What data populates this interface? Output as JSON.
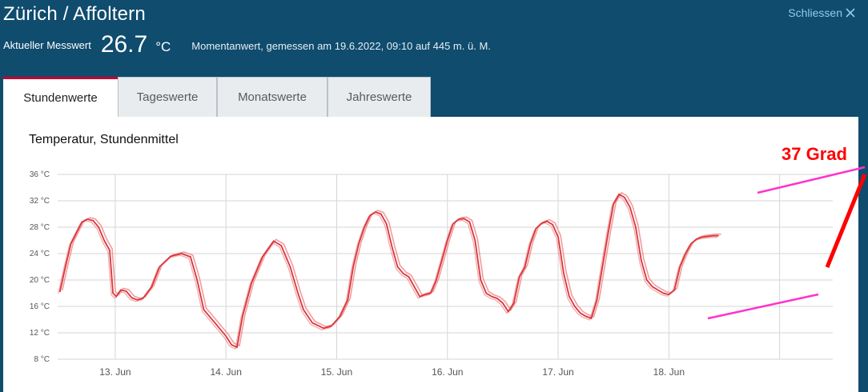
{
  "header": {
    "title": "Zürich / Affoltern",
    "close_label": "Schliessen"
  },
  "measurement": {
    "label": "Aktueller Messwert",
    "value": "26.7",
    "unit": "°C",
    "note": "Momentanwert, gemessen am 19.6.2022, 09:10 auf 445 m. ü. M."
  },
  "tabs": [
    {
      "label": "Stundenwerte",
      "active": true
    },
    {
      "label": "Tageswerte",
      "active": false
    },
    {
      "label": "Monatswerte",
      "active": false
    },
    {
      "label": "Jahreswerte",
      "active": false
    }
  ],
  "colors": {
    "header_bg": "#0f4c6e",
    "tab_accent": "#c3002f",
    "series_main": "#d9363e",
    "series_light": "#f08a8a",
    "annotation_red": "#ff0000",
    "annotation_magenta": "#ff33cc"
  },
  "chart_data": {
    "type": "line",
    "title": "Temperatur, Stundenmittel",
    "xlabel": "",
    "ylabel": "",
    "ylim": [
      8,
      36
    ],
    "xlim": [
      12.4,
      19.4
    ],
    "yticks": [
      "8 °C",
      "12 °C",
      "16 °C",
      "20 °C",
      "24 °C",
      "28 °C",
      "32 °C",
      "36 °C"
    ],
    "ytick_values": [
      8,
      12,
      16,
      20,
      24,
      28,
      32,
      36
    ],
    "xticks": [
      "13. Jun",
      "14. Jun",
      "15. Jun",
      "16. Jun",
      "17. Jun",
      "18. Jun"
    ],
    "xtick_values": [
      12.92,
      13.92,
      14.92,
      15.92,
      16.92,
      17.92
    ],
    "grid": true,
    "series": [
      {
        "x": [
          12.42,
          12.47,
          12.52,
          12.58,
          12.62,
          12.67,
          12.72,
          12.77,
          12.82,
          12.87,
          12.9,
          12.93,
          12.97,
          13.02,
          13.07,
          13.12,
          13.17,
          13.25,
          13.32,
          13.42,
          13.52,
          13.6,
          13.66,
          13.72,
          13.77,
          13.82,
          13.87,
          13.92,
          13.97,
          14.02,
          14.07,
          14.15,
          14.25,
          14.35,
          14.42,
          14.5,
          14.57,
          14.62,
          14.7,
          14.8,
          14.87,
          14.95,
          15.02,
          15.07,
          15.12,
          15.17,
          15.22,
          15.27,
          15.32,
          15.37,
          15.42,
          15.47,
          15.52,
          15.57,
          15.62,
          15.67,
          15.72,
          15.77,
          15.82,
          15.87,
          15.92,
          15.97,
          16.02,
          16.07,
          16.12,
          16.17,
          16.22,
          16.27,
          16.32,
          16.37,
          16.42,
          16.47,
          16.52,
          16.57,
          16.62,
          16.67,
          16.72,
          16.77,
          16.82,
          16.87,
          16.92,
          16.97,
          17.02,
          17.07,
          17.12,
          17.17,
          17.22,
          17.27,
          17.32,
          17.37,
          17.42,
          17.47,
          17.52,
          17.57,
          17.62,
          17.67,
          17.72,
          17.77,
          17.82,
          17.87,
          17.92,
          17.97,
          18.02,
          18.07,
          18.12,
          18.17,
          18.22,
          18.27,
          18.32,
          18.37
        ],
        "values": [
          18.2,
          22,
          25.5,
          27.5,
          28.8,
          29.2,
          29,
          28,
          26,
          24.5,
          18,
          17.5,
          18.5,
          18.3,
          17.3,
          17.0,
          17.2,
          19,
          22,
          23.6,
          24,
          23.5,
          20,
          15.5,
          14.5,
          13.5,
          12.5,
          11.5,
          10.2,
          9.8,
          14.5,
          19.5,
          23.5,
          25.9,
          25.2,
          22,
          18,
          15.5,
          13.5,
          12.7,
          13,
          14.5,
          17,
          22,
          25.5,
          28,
          29.8,
          30.3,
          30.0,
          28.5,
          25,
          22,
          21,
          20.5,
          19,
          17.5,
          17.8,
          18,
          20,
          23,
          26,
          28.5,
          29.2,
          29.3,
          28.8,
          26,
          20,
          18,
          17.5,
          17.2,
          16.5,
          15.2,
          16.5,
          20.5,
          22,
          25.5,
          27.8,
          28.6,
          28.9,
          28.4,
          26.5,
          21,
          17.5,
          16,
          15,
          14.5,
          14.2,
          17,
          22,
          27,
          31.5,
          33,
          32.5,
          31,
          28,
          23,
          20,
          19,
          18.5,
          18,
          17.8,
          18.5,
          22,
          24,
          25.5,
          26.2,
          26.5,
          26.6,
          26.7,
          26.7
        ],
        "name": ""
      }
    ]
  },
  "annotations": {
    "label": "37 Grad"
  }
}
